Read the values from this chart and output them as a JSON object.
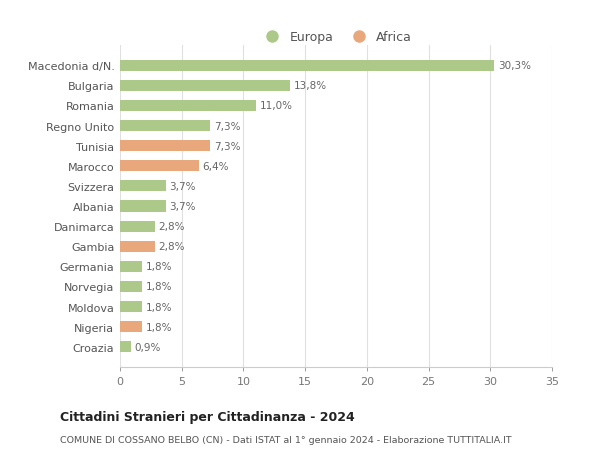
{
  "categories": [
    "Macedonia d/N.",
    "Bulgaria",
    "Romania",
    "Regno Unito",
    "Tunisia",
    "Marocco",
    "Svizzera",
    "Albania",
    "Danimarca",
    "Gambia",
    "Germania",
    "Norvegia",
    "Moldova",
    "Nigeria",
    "Croazia"
  ],
  "values": [
    30.3,
    13.8,
    11.0,
    7.3,
    7.3,
    6.4,
    3.7,
    3.7,
    2.8,
    2.8,
    1.8,
    1.8,
    1.8,
    1.8,
    0.9
  ],
  "labels": [
    "30,3%",
    "13,8%",
    "11,0%",
    "7,3%",
    "7,3%",
    "6,4%",
    "3,7%",
    "3,7%",
    "2,8%",
    "2,8%",
    "1,8%",
    "1,8%",
    "1,8%",
    "1,8%",
    "0,9%"
  ],
  "colors": [
    "#adc98a",
    "#adc98a",
    "#adc98a",
    "#adc98a",
    "#e8a87c",
    "#e8a87c",
    "#adc98a",
    "#adc98a",
    "#adc98a",
    "#e8a87c",
    "#adc98a",
    "#adc98a",
    "#adc98a",
    "#e8a87c",
    "#adc98a"
  ],
  "europa_color": "#adc98a",
  "africa_color": "#e8a87c",
  "background_color": "#ffffff",
  "grid_color": "#e0e0e0",
  "title": "Cittadini Stranieri per Cittadinanza - 2024",
  "subtitle": "COMUNE DI COSSANO BELBO (CN) - Dati ISTAT al 1° gennaio 2024 - Elaborazione TUTTITALIA.IT",
  "xlim": [
    0,
    35
  ],
  "xticks": [
    0,
    5,
    10,
    15,
    20,
    25,
    30,
    35
  ],
  "legend_europa": "Europa",
  "legend_africa": "Africa"
}
